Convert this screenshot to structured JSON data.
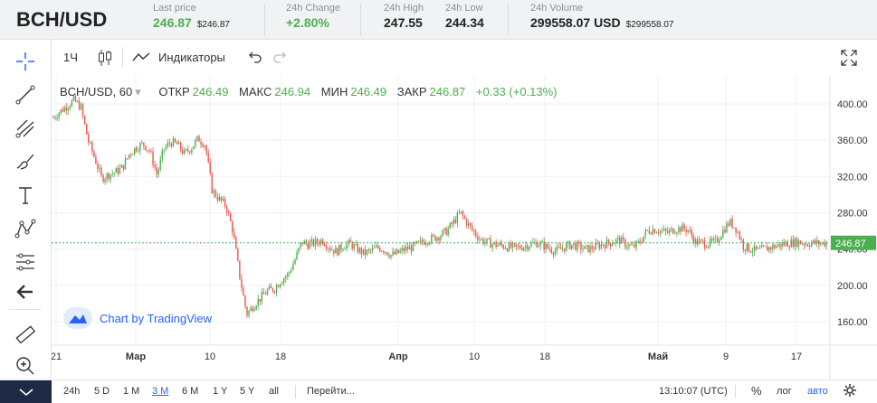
{
  "header": {
    "pair": "BCH/USD",
    "last_price": {
      "label": "Last price",
      "value": "246.87",
      "sub": "$246.87"
    },
    "change": {
      "label": "24h Change",
      "value": "+2.80%"
    },
    "high": {
      "label": "24h High",
      "value": "247.55"
    },
    "low": {
      "label": "24h Low",
      "value": "244.34"
    },
    "volume": {
      "label": "24h Volume",
      "value": "299558.07 USD",
      "sub": "$299558.07"
    }
  },
  "toolbar": {
    "interval": "1Ч",
    "indicators_label": "Индикаторы"
  },
  "legend": {
    "symbol": "BCH/USD, 60",
    "open_label": "ОТКР",
    "open": "246.49",
    "high_label": "МАКС",
    "high": "246.94",
    "low_label": "МИН",
    "low": "246.49",
    "close_label": "ЗАКР",
    "close": "246.87",
    "change": "+0.33 (+0.13%)"
  },
  "watermark": "Chart by TradingView",
  "colors": {
    "up": "#4caf50",
    "down": "#ef5350",
    "accent": "#2962ff",
    "grid": "#eef0f3"
  },
  "icons": [
    "crosshair-icon",
    "trend-line-icon",
    "pitchfork-icon",
    "brush-icon",
    "text-icon",
    "pattern-icon",
    "fib-icon",
    "back-arrow-icon",
    "ruler-icon",
    "zoom-in-icon"
  ],
  "chart_data": {
    "type": "candlestick",
    "y_ticks": [
      "400.00",
      "360.00",
      "320.00",
      "280.00",
      "240.00",
      "200.00",
      "160.00"
    ],
    "x_ticks": [
      "21",
      "Мар",
      "10",
      "18",
      "Апр",
      "10",
      "18",
      "Май",
      "9",
      "17"
    ],
    "last_price_label": "246.87",
    "close_series": [
      385,
      392,
      398,
      404,
      396,
      360,
      340,
      318,
      322,
      325,
      330,
      345,
      352,
      356,
      348,
      322,
      350,
      358,
      355,
      345,
      352,
      362,
      355,
      305,
      295,
      288,
      260,
      210,
      168,
      178,
      186,
      194,
      196,
      206,
      212,
      228,
      248,
      245,
      247,
      250,
      242,
      237,
      244,
      246,
      240,
      235,
      238,
      242,
      239,
      233,
      236,
      240,
      242,
      246,
      250,
      252,
      255,
      260,
      270,
      280,
      268,
      258,
      250,
      247,
      245,
      244,
      242,
      241,
      243,
      245,
      247,
      244,
      240,
      238,
      242,
      245,
      243,
      240,
      241,
      244,
      246,
      248,
      250,
      245,
      242,
      248,
      260,
      262,
      260,
      258,
      262,
      263,
      261,
      248,
      247,
      246,
      248,
      260,
      270,
      262,
      243,
      240,
      238,
      240,
      242,
      244,
      246,
      247,
      248,
      246,
      247,
      246,
      247
    ]
  },
  "bottom": {
    "ranges": [
      "24h",
      "5 D",
      "1 M",
      "3 M",
      "6 M",
      "1 Y",
      "5 Y",
      "all"
    ],
    "active_range": "3 M",
    "goto": "Перейти...",
    "time": "13:10:07 (UTC)",
    "pct": "%",
    "log": "лог",
    "auto": "авто"
  }
}
